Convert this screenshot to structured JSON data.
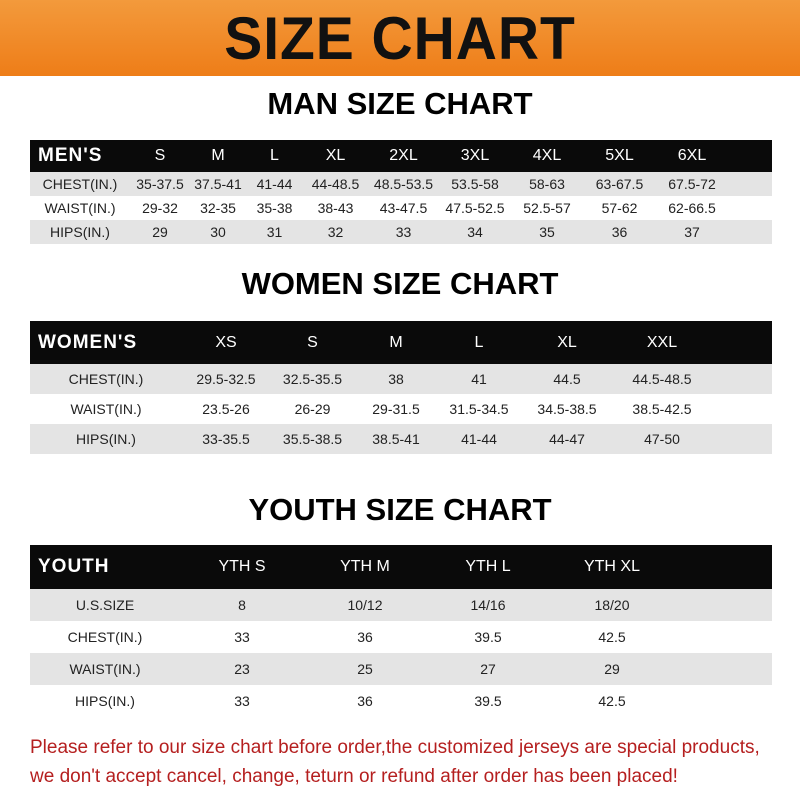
{
  "title": "SIZE CHART",
  "colors": {
    "banner": "#ee7d18",
    "header_row": "#0a0a0a",
    "stripe": "#e4e4e4",
    "note": "#b51f1f"
  },
  "men": {
    "heading": "MAN SIZE CHART",
    "columns": [
      "MEN'S",
      "S",
      "M",
      "L",
      "XL",
      "2XL",
      "3XL",
      "4XL",
      "5XL",
      "6XL"
    ],
    "rows": [
      [
        "CHEST(IN.)",
        "35-37.5",
        "37.5-41",
        "41-44",
        "44-48.5",
        "48.5-53.5",
        "53.5-58",
        "58-63",
        "63-67.5",
        "67.5-72"
      ],
      [
        "WAIST(IN.)",
        "29-32",
        "32-35",
        "35-38",
        "38-43",
        "43-47.5",
        "47.5-52.5",
        "52.5-57",
        "57-62",
        "62-66.5"
      ],
      [
        "HIPS(IN.)",
        "29",
        "30",
        "31",
        "32",
        "33",
        "34",
        "35",
        "36",
        "37"
      ]
    ]
  },
  "women": {
    "heading": "WOMEN SIZE CHART",
    "columns": [
      "WOMEN'S",
      "XS",
      "S",
      "M",
      "L",
      "XL",
      "XXL"
    ],
    "rows": [
      [
        "CHEST(IN.)",
        "29.5-32.5",
        "32.5-35.5",
        "38",
        "41",
        "44.5",
        "44.5-48.5"
      ],
      [
        "WAIST(IN.)",
        "23.5-26",
        "26-29",
        "29-31.5",
        "31.5-34.5",
        "34.5-38.5",
        "38.5-42.5"
      ],
      [
        "HIPS(IN.)",
        "33-35.5",
        "35.5-38.5",
        "38.5-41",
        "41-44",
        "44-47",
        "47-50"
      ]
    ]
  },
  "youth": {
    "heading": "YOUTH SIZE CHART",
    "columns": [
      "YOUTH",
      "YTH S",
      "YTH M",
      "YTH L",
      "YTH XL"
    ],
    "rows": [
      [
        "U.S.SIZE",
        "8",
        "10/12",
        "14/16",
        "18/20"
      ],
      [
        "CHEST(IN.)",
        "33",
        "36",
        "39.5",
        "42.5"
      ],
      [
        "WAIST(IN.)",
        "23",
        "25",
        "27",
        "29"
      ],
      [
        "HIPS(IN.)",
        "33",
        "36",
        "39.5",
        "42.5"
      ]
    ]
  },
  "note": [
    "Please refer to our size chart before order,the customized jerseys are special products,",
    "we don't accept cancel, change, teturn or refund after order has been placed!"
  ]
}
